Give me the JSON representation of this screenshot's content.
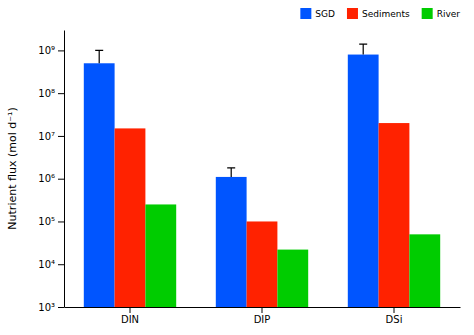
{
  "chart_data": {
    "type": "bar",
    "categories": [
      "DIN",
      "DIP",
      "DSi"
    ],
    "series": [
      {
        "name": "SGD",
        "color": "#0055FF",
        "values": [
          500000000.0,
          1100000.0,
          800000000.0
        ],
        "errors": [
          500000000.0,
          700000.0,
          600000000.0
        ]
      },
      {
        "name": "Sediments",
        "color": "#FF2200",
        "values": [
          15000000.0,
          100000.0,
          20000000.0
        ]
      },
      {
        "name": "River",
        "color": "#00CC00",
        "values": [
          250000.0,
          22000.0,
          50000.0
        ]
      }
    ],
    "ylabel": "Nutrient flux (mol d⁻¹)",
    "log": "y",
    "ylim": [
      1000.0,
      3000000000.0
    ],
    "yticks": [
      {
        "value": 1000,
        "label": "10³"
      },
      {
        "value": 10000,
        "label": "10⁴"
      },
      {
        "value": 100000,
        "label": "10⁵"
      },
      {
        "value": 1000000,
        "label": "10⁶"
      },
      {
        "value": 10000000,
        "label": "10⁷"
      },
      {
        "value": 100000000,
        "label": "10⁸"
      },
      {
        "value": 1000000000,
        "label": "10⁹"
      }
    ],
    "grid": false,
    "legend": "upper right"
  }
}
